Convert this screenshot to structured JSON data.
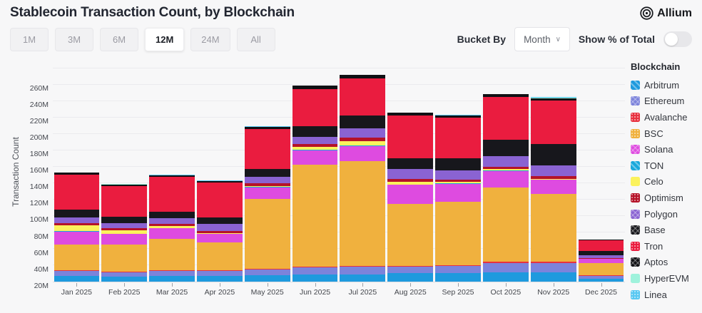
{
  "header": {
    "title": "Stablecoin Transaction Count, by Blockchain",
    "logo_text": "Allium"
  },
  "controls": {
    "range_buttons": [
      "1M",
      "3M",
      "6M",
      "12M",
      "24M",
      "All"
    ],
    "active_range": "12M",
    "bucket_by_label": "Bucket By",
    "bucket_value": "Month",
    "bucket_chevron": "∨",
    "show_pct_label": "Show % of Total",
    "toggle_on": false
  },
  "chart_data": {
    "type": "bar",
    "stacked": true,
    "title": "Stablecoin Transaction Count, by Blockchain",
    "xlabel": "",
    "ylabel": "Transaction Count",
    "unit": "M",
    "ylim": [
      0,
      270
    ],
    "yticks": [
      20,
      40,
      60,
      80,
      100,
      120,
      140,
      160,
      180,
      200,
      220,
      240,
      260
    ],
    "grid": true,
    "legend_title": "Blockchain",
    "legend_position": "right",
    "categories": [
      "Jan 2025",
      "Feb 2025",
      "Mar 2025",
      "Apr 2025",
      "May 2025",
      "Jun 2025",
      "Jul 2025",
      "Aug 2025",
      "Sep 2025",
      "Oct 2025",
      "Nov 2025",
      "Dec 2025"
    ],
    "series": [
      {
        "name": "Arbitrum",
        "color": "#1e9ade",
        "pattern": "diag",
        "values": [
          7,
          6,
          7,
          7,
          8,
          9,
          9,
          10,
          10,
          11,
          11,
          3.5
        ]
      },
      {
        "name": "Ethereum",
        "color": "#7c83db",
        "pattern": "cross",
        "values": [
          6,
          5,
          6,
          6,
          7,
          8,
          9,
          8,
          9,
          12,
          12,
          3.5
        ]
      },
      {
        "name": "Avalanche",
        "color": "#e8313f",
        "pattern": "dots",
        "values": [
          1,
          1,
          1,
          1,
          1,
          1,
          1,
          1,
          1,
          1,
          1,
          0.4
        ]
      },
      {
        "name": "BSC",
        "color": "#f0b13e",
        "pattern": "dots",
        "values": [
          31,
          33,
          38,
          34,
          85,
          124,
          128,
          76,
          77,
          91,
          83,
          15
        ]
      },
      {
        "name": "Solana",
        "color": "#de4be0",
        "pattern": "cross",
        "values": [
          16,
          13,
          13,
          10,
          14,
          18,
          18,
          23,
          22,
          20,
          17,
          5
        ]
      },
      {
        "name": "TON",
        "color": "#19a8dc",
        "pattern": "diag",
        "values": [
          0.5,
          0.5,
          0.5,
          0.5,
          0.5,
          0.5,
          0.5,
          0.5,
          0.5,
          0.5,
          0.5,
          0.2
        ]
      },
      {
        "name": "Celo",
        "color": "#fbf25c",
        "pattern": "solid",
        "values": [
          7,
          4,
          2,
          1,
          1,
          4,
          6,
          3,
          2,
          1.5,
          1,
          0.3
        ]
      },
      {
        "name": "Optimism",
        "color": "#b51228",
        "pattern": "dots",
        "values": [
          3,
          3,
          3,
          2,
          3,
          3,
          4,
          4,
          3,
          3,
          3,
          0.7
        ]
      },
      {
        "name": "Polygon",
        "color": "#8a63d2",
        "pattern": "cross",
        "values": [
          7,
          6,
          7,
          9,
          8,
          9,
          11,
          12,
          11,
          13,
          13,
          4
        ]
      },
      {
        "name": "Base",
        "color": "#17171c",
        "pattern": "cross",
        "values": [
          9,
          8,
          8,
          8,
          10,
          13,
          16,
          13,
          15,
          20,
          26,
          4.5
        ]
      },
      {
        "name": "Tron",
        "color": "#ea1c3f",
        "pattern": "dots",
        "values": [
          43,
          37,
          42,
          42,
          48,
          45,
          45,
          52,
          49,
          52,
          53,
          13
        ]
      },
      {
        "name": "Aptos",
        "color": "#101014",
        "pattern": "cross",
        "values": [
          2,
          2,
          2,
          2,
          3,
          4,
          4,
          3,
          3,
          3,
          3,
          1
        ]
      },
      {
        "name": "HyperEVM",
        "color": "#9ff2dc",
        "pattern": "solid",
        "values": [
          0.2,
          0.2,
          0.2,
          0.2,
          0.3,
          0.3,
          0.3,
          0.3,
          0.3,
          0.5,
          1,
          0.2
        ]
      },
      {
        "name": "Linea",
        "color": "#58c8f2",
        "pattern": "dots",
        "values": [
          0.3,
          0.3,
          0.3,
          0.3,
          0.3,
          0.3,
          0.3,
          0.3,
          0.3,
          0.3,
          0.3,
          0.2
        ]
      }
    ]
  }
}
